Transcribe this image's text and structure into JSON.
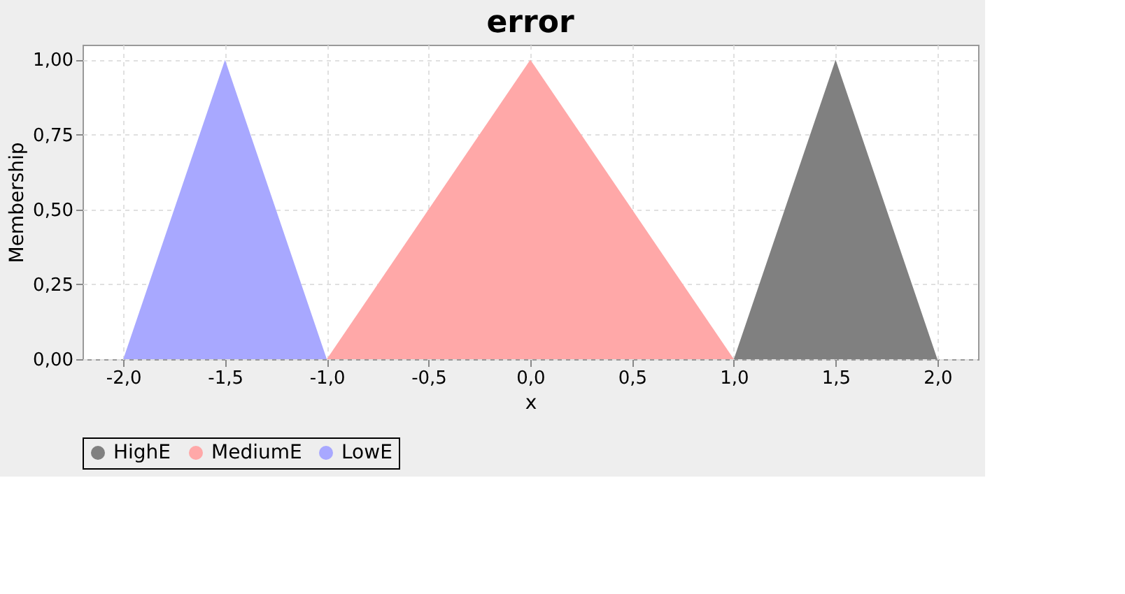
{
  "chart_data": {
    "type": "area",
    "title": "error",
    "xlabel": "x",
    "ylabel": "Membership",
    "series": [
      {
        "name": "HighE",
        "color": "#808080",
        "x": [
          1.0,
          1.5,
          2.0
        ],
        "values": [
          0,
          1,
          0
        ]
      },
      {
        "name": "MediumE",
        "color": "#ffa8a8",
        "x": [
          -1.0,
          0.0,
          1.0
        ],
        "values": [
          0,
          1,
          0
        ]
      },
      {
        "name": "LowE",
        "color": "#a8a8ff",
        "x": [
          -2.0,
          -1.5,
          -1.0
        ],
        "values": [
          0,
          1,
          0
        ]
      }
    ],
    "xlim": [
      -2.2,
      2.2
    ],
    "xticks": [
      {
        "value": -2,
        "label": "-2,0"
      },
      {
        "value": -1.5,
        "label": "-1,5"
      },
      {
        "value": -1,
        "label": "-1,0"
      },
      {
        "value": -0.5,
        "label": "-0,5"
      },
      {
        "value": 0,
        "label": "0,0"
      },
      {
        "value": 0.5,
        "label": "0,5"
      },
      {
        "value": 1,
        "label": "1,0"
      },
      {
        "value": 1.5,
        "label": "1,5"
      },
      {
        "value": 2,
        "label": "2,0"
      }
    ],
    "ylim": [
      0,
      1.05
    ],
    "yticks": [
      {
        "value": 0,
        "label": "0,00"
      },
      {
        "value": 0.25,
        "label": "0,25"
      },
      {
        "value": 0.5,
        "label": "0,50"
      },
      {
        "value": 0.75,
        "label": "0,75"
      },
      {
        "value": 1,
        "label": "1,00"
      }
    ],
    "grid": true,
    "legend": "bottom"
  }
}
